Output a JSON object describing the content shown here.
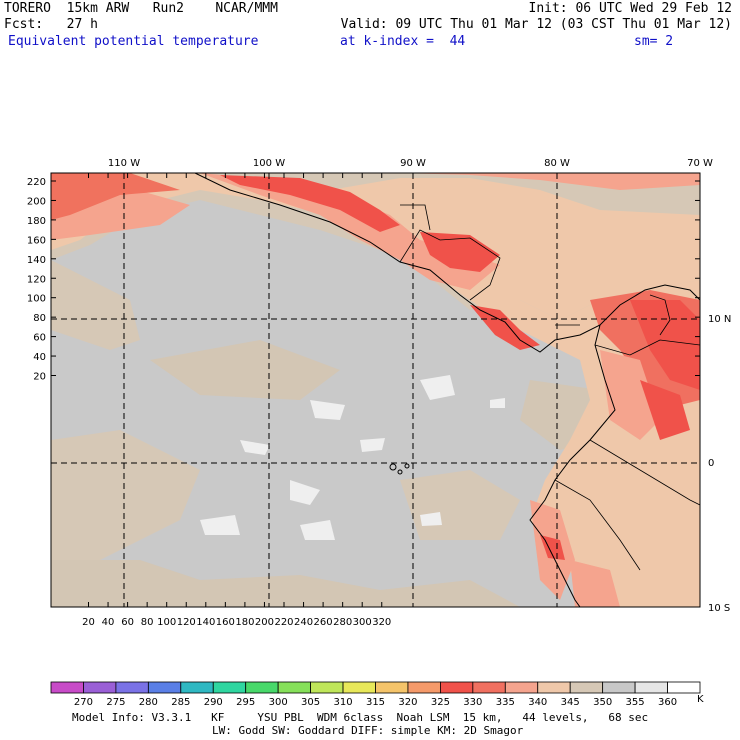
{
  "header": {
    "line1_left": "TORERO  15km ARW   Run2    NCAR/MMM",
    "line1_right": "Init: 06 UTC Wed 29 Feb 12",
    "line2_left": "Fcst:   27 h",
    "line2_right": "Valid: 09 UTC Thu 01 Mar 12 (03 CST Thu 01 Mar 12)",
    "field_name": "Equivalent potential temperature",
    "level_text": "at k-index =  44",
    "smooth_text": "sm= 2"
  },
  "map": {
    "top_lon_labels": [
      "110 W",
      "100 W",
      "90 W",
      "80 W",
      "70 W"
    ],
    "right_lat_labels": [
      "10 N",
      "0",
      "10 S"
    ],
    "y_grid_labels": [
      "220",
      "200",
      "180",
      "160",
      "140",
      "120",
      "100",
      "80",
      "60",
      "40",
      "20"
    ],
    "x_grid_labels": [
      "20",
      "40",
      "60",
      "80",
      "100",
      "120",
      "140",
      "160",
      "180",
      "200",
      "220",
      "240",
      "260",
      "280",
      "300",
      "320"
    ]
  },
  "colorbar": {
    "levels": [
      "270",
      "275",
      "280",
      "285",
      "290",
      "295",
      "300",
      "305",
      "310",
      "315",
      "320",
      "325",
      "330",
      "335",
      "340",
      "345",
      "350",
      "355",
      "360"
    ],
    "unit": "K",
    "colors": [
      "#c84bc8",
      "#9a5fd6",
      "#7a72e6",
      "#5a7fe6",
      "#2fb8c2",
      "#2fd6a0",
      "#48d86a",
      "#86e05a",
      "#bfe65a",
      "#e8e85a",
      "#f5c46a",
      "#f59a6a",
      "#f0524a",
      "#f07060",
      "#f5a48e",
      "#efc8aa",
      "#d6c8b6",
      "#c8c8c8",
      "#e6e6e6",
      "#ffffff"
    ]
  },
  "footer": {
    "line1": "Model Info: V3.3.1   KF     YSU PBL  WDM 6class  Noah LSM  15 km,   44 levels,   68 sec",
    "line2": "LW: Godd SW: Goddard DIFF: simple KM: 2D Smagor"
  }
}
